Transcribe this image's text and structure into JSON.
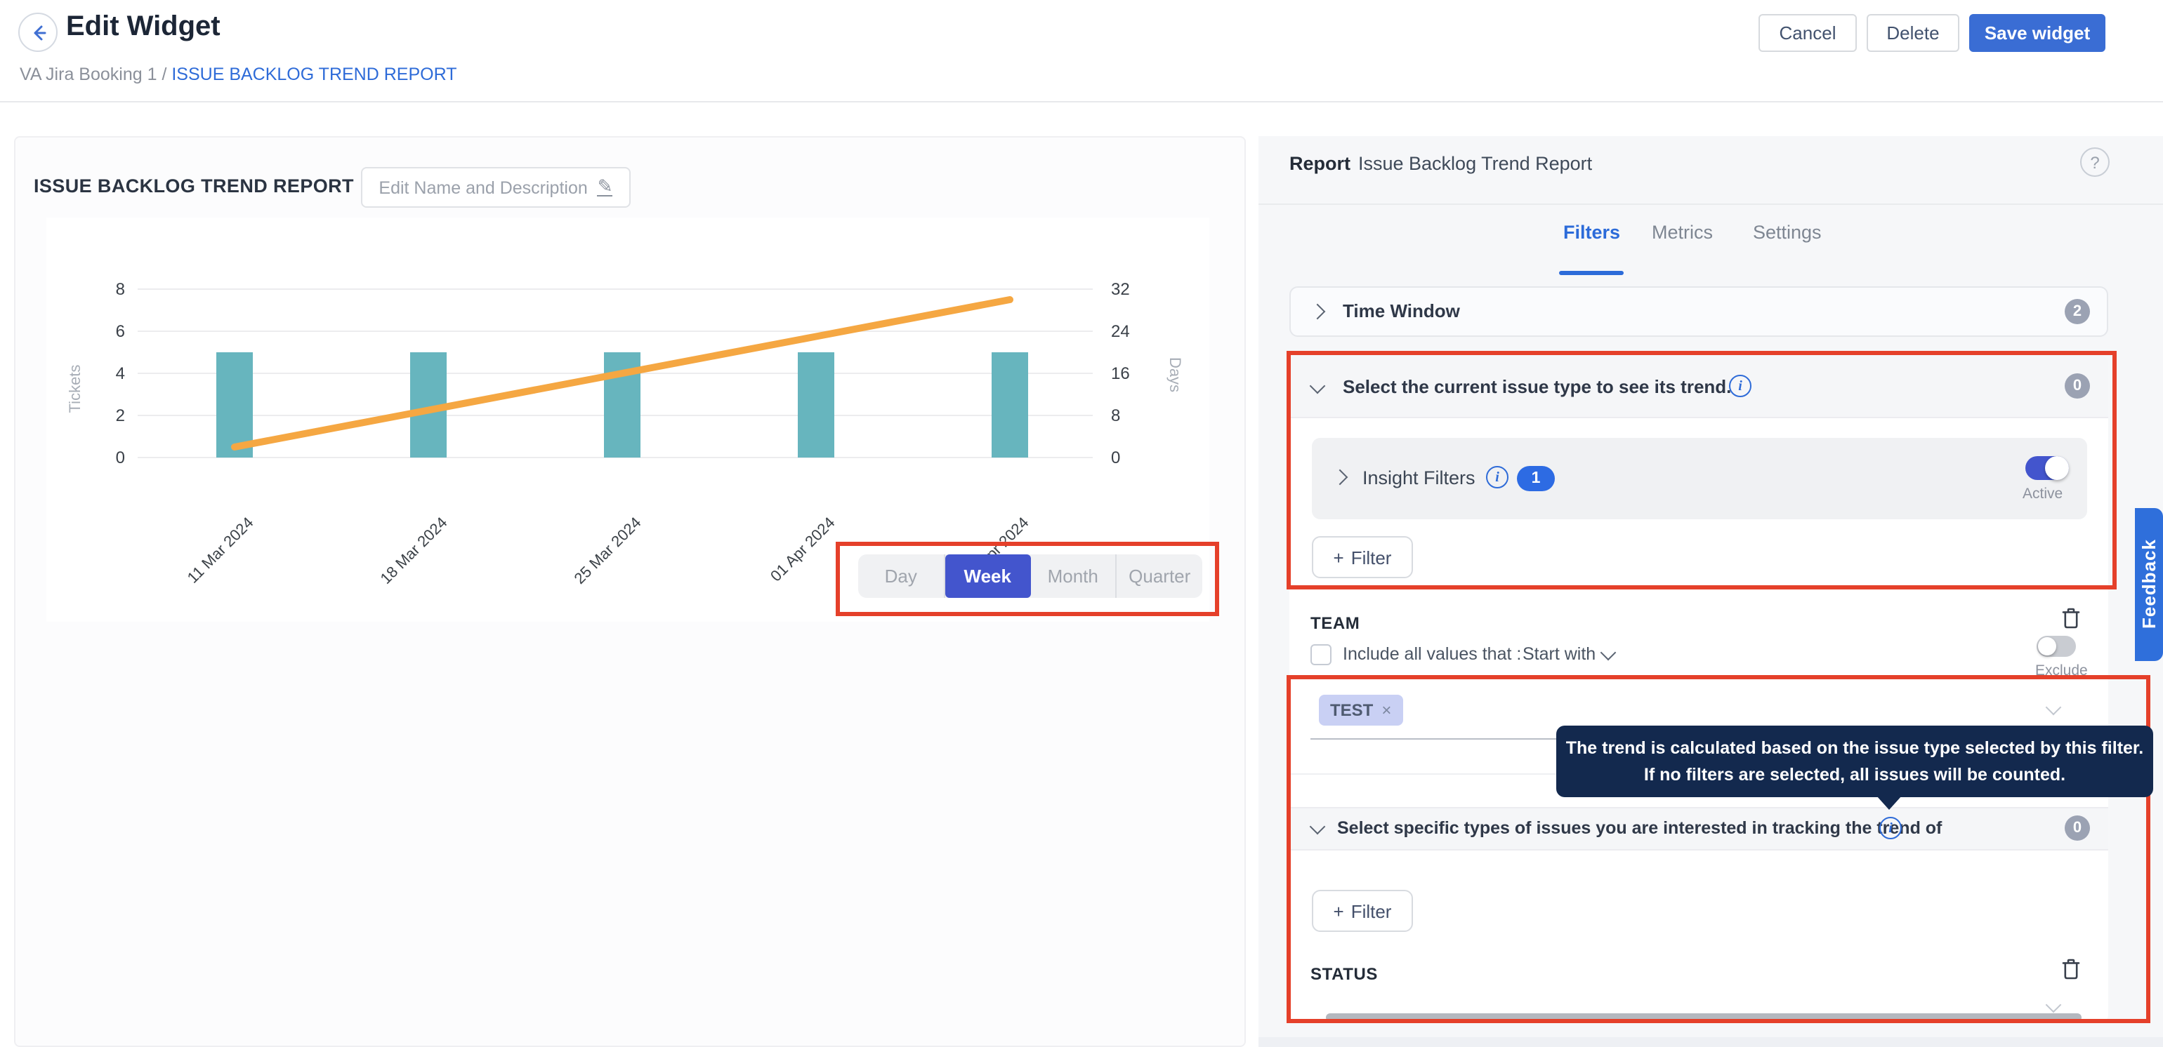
{
  "header": {
    "title": "Edit Widget",
    "breadcrumb": {
      "parent": "VA Jira Booking 1",
      "separator": " / ",
      "current": "ISSUE BACKLOG TREND REPORT"
    },
    "buttons": {
      "cancel": "Cancel",
      "delete": "Delete",
      "save": "Save widget"
    }
  },
  "widget_card": {
    "title": "ISSUE BACKLOG TREND REPORT",
    "edit_button": "Edit Name and Description",
    "period_toggle": {
      "options": [
        "Day",
        "Week",
        "Month",
        "Quarter"
      ],
      "selected": "Week"
    }
  },
  "chart_data": {
    "type": "bar+line",
    "categories": [
      "11 Mar 2024",
      "18 Mar 2024",
      "25 Mar 2024",
      "01 Apr 2024",
      "08 Apr 2024"
    ],
    "series": [
      {
        "name": "Tickets",
        "type": "bar",
        "axis": "left",
        "color": "#67b5be",
        "values": [
          5,
          5,
          5,
          5,
          5
        ]
      },
      {
        "name": "Days",
        "type": "line",
        "axis": "right",
        "color": "#f5a742",
        "values": [
          2,
          9,
          16,
          23,
          30
        ]
      }
    ],
    "left_axis": {
      "label": "Tickets",
      "ticks": [
        0,
        2,
        4,
        6,
        8
      ],
      "max": 8
    },
    "right_axis": {
      "label": "Days",
      "ticks": [
        0,
        8,
        16,
        24,
        32
      ],
      "max": 32
    },
    "grid": "horizontal gridlines at left-axis ticks, legend off"
  },
  "report_panel": {
    "header_label": "Report",
    "report_name": "Issue Backlog Trend Report",
    "help_icon": "?",
    "tabs": [
      {
        "label": "Filters",
        "active": true
      },
      {
        "label": "Metrics",
        "active": false
      },
      {
        "label": "Settings",
        "active": false
      }
    ],
    "time_window": {
      "label": "Time Window",
      "badge": "2"
    },
    "current_issue_section": {
      "title": "Select the current issue type to see its trend.",
      "badge": "0",
      "insight_filters": {
        "label": "Insight Filters",
        "badge": "1",
        "toggle_label": "Active",
        "toggle_on": true
      },
      "add_filter_button": {
        "plus": "+",
        "label": "Filter"
      }
    },
    "team_filter": {
      "name": "TEAM",
      "checkbox_label": "Include all values that :",
      "checkbox_checked": false,
      "operator_value": "Start with",
      "exclude_label": "Exclude",
      "exclude_on": false,
      "tags": [
        {
          "label": "TEST",
          "close": "×"
        }
      ]
    },
    "tooltip": {
      "line1": "The trend is calculated based on the issue type selected by this filter.",
      "line2": "If no filters are selected, all issues will be counted."
    },
    "specific_types_section": {
      "title": "Select specific types of issues you are interested in tracking the trend of",
      "badge": "0",
      "add_filter_button": {
        "plus": "+",
        "label": "Filter"
      }
    },
    "status_filter": {
      "name": "STATUS"
    },
    "feedback_tab": "Feedback"
  },
  "colors": {
    "accent_blue": "#2e6bd8",
    "save_button_blue": "#3a6dd4",
    "selected_indigo": "#4355cd",
    "annotation_red": "#e5402a",
    "bar_teal": "#67b5be",
    "line_orange": "#f5a742",
    "tooltip_bg": "#13294e",
    "badge_gray": "#9ba2b3",
    "badge_blue": "#2d6be3",
    "feedback_blue": "#2f6fdb",
    "panel_bg": "#f6f7f9"
  }
}
